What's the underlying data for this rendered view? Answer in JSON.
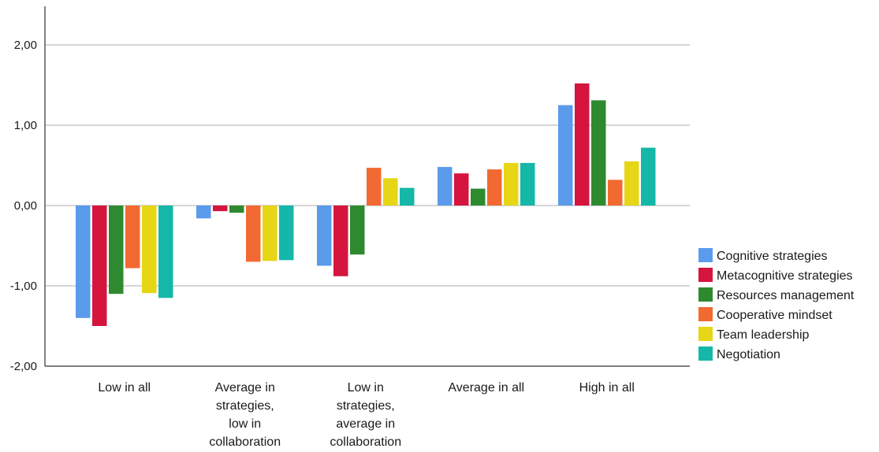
{
  "chart_data": {
    "type": "bar",
    "title": "",
    "xlabel": "",
    "ylabel": "",
    "ylim": [
      -2,
      2
    ],
    "yticks": [
      2,
      1,
      0,
      -1,
      -2
    ],
    "ytick_labels": [
      "2,00",
      "1,00",
      "0,00",
      "-1,00",
      "-2,00"
    ],
    "grid": true,
    "legend_position": "right",
    "categories": [
      [
        "Low in all"
      ],
      [
        "Average in",
        "strategies,",
        "low in",
        "collaboration"
      ],
      [
        "Low in",
        "strategies,",
        "average in",
        "collaboration"
      ],
      [
        "Average in all"
      ],
      [
        "High in all"
      ]
    ],
    "series": [
      {
        "name": "Cognitive strategies",
        "color": "#5b9bec",
        "values": [
          -1.4,
          -0.16,
          -0.75,
          0.48,
          1.25
        ]
      },
      {
        "name": "Metacognitive strategies",
        "color": "#d5153d",
        "values": [
          -1.5,
          -0.07,
          -0.88,
          0.4,
          1.52
        ]
      },
      {
        "name": "Resources management",
        "color": "#2e8a2e",
        "values": [
          -1.1,
          -0.09,
          -0.61,
          0.21,
          1.31
        ]
      },
      {
        "name": "Cooperative mindset",
        "color": "#f26a31",
        "values": [
          -0.78,
          -0.7,
          0.47,
          0.45,
          0.32
        ]
      },
      {
        "name": "Team leadership",
        "color": "#e6d616",
        "values": [
          -1.09,
          -0.69,
          0.34,
          0.53,
          0.55
        ]
      },
      {
        "name": "Negotiation",
        "color": "#14b7a8",
        "values": [
          -1.15,
          -0.68,
          0.22,
          0.53,
          0.72
        ]
      }
    ]
  }
}
